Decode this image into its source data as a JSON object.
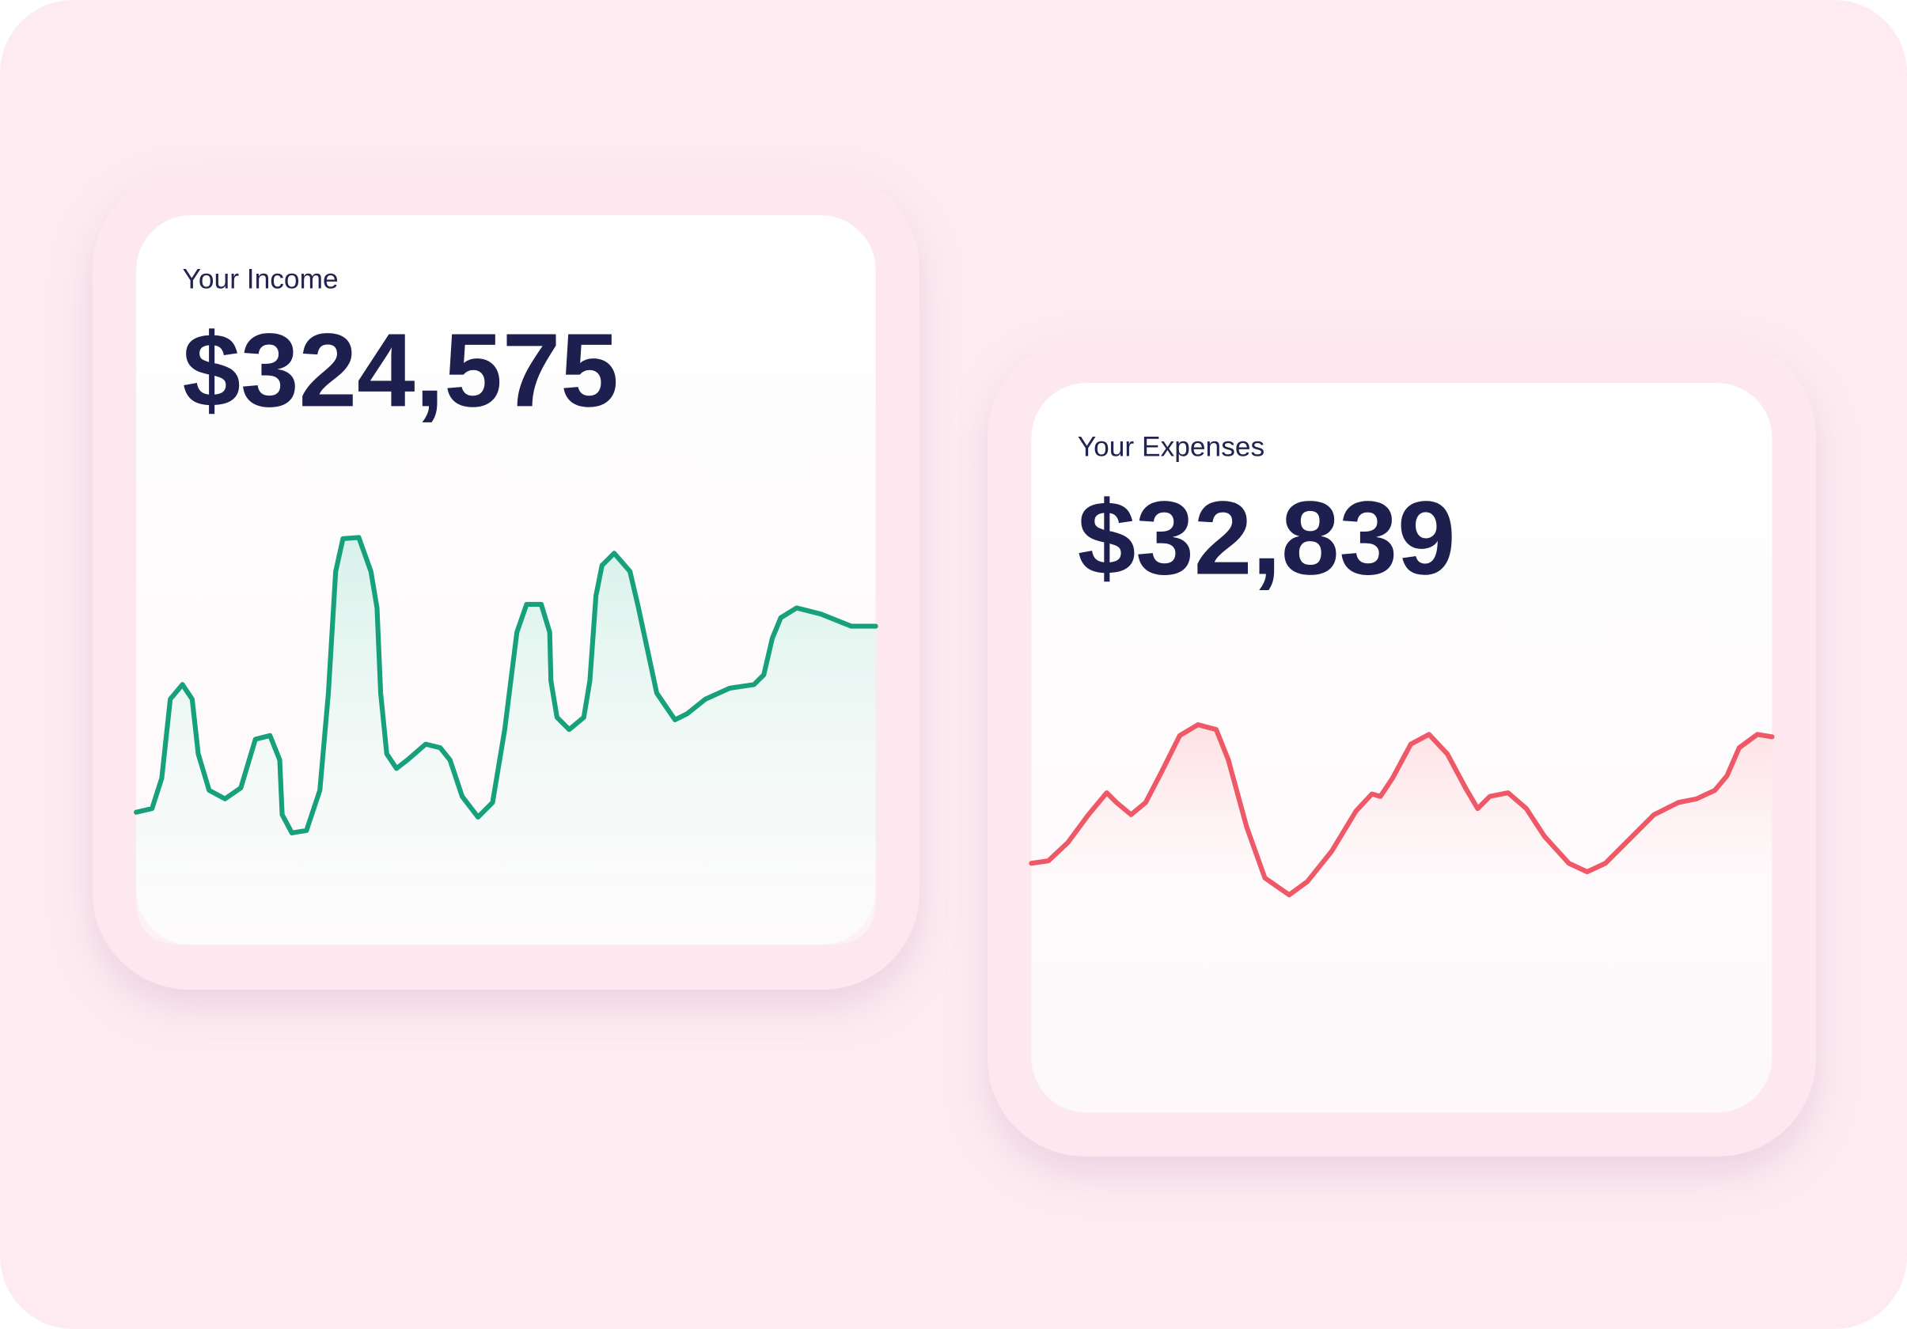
{
  "income": {
    "label": "Your Income",
    "amount": "$324,575"
  },
  "expenses": {
    "label": "Your Expenses",
    "amount": "$32,839"
  }
}
